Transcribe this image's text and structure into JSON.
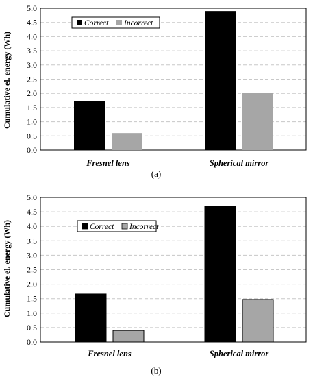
{
  "chart_data": [
    {
      "type": "bar",
      "panel_label": "(a)",
      "categories": [
        "Fresnel lens",
        "Spherical mirror"
      ],
      "series": [
        {
          "name": "Correct",
          "values": [
            1.72,
            4.9
          ],
          "color": "#000000"
        },
        {
          "name": "Incorrect",
          "values": [
            0.6,
            2.02
          ],
          "color": "#a6a6a6"
        }
      ],
      "ylabel": "Cumulative el. energy (Wh)",
      "ylim": [
        0,
        5
      ],
      "yticks": [
        "0.0",
        "0.5",
        "1.0",
        "1.5",
        "2.0",
        "2.5",
        "3.0",
        "3.5",
        "4.0",
        "4.5",
        "5.0"
      ],
      "grid": true,
      "legend": "top-left"
    },
    {
      "type": "bar",
      "panel_label": "(b)",
      "categories": [
        "Fresnel lens",
        "Spherical mirror"
      ],
      "series": [
        {
          "name": "Correct",
          "values": [
            1.66,
            4.7
          ],
          "color": "#000000"
        },
        {
          "name": "Incorrect",
          "values": [
            0.4,
            1.47
          ],
          "color": "#a6a6a6"
        }
      ],
      "ylabel": "Cumulative el. energy (Wh)",
      "ylim": [
        0,
        5
      ],
      "yticks": [
        "0.0",
        "0.5",
        "1.0",
        "1.5",
        "2.0",
        "2.5",
        "3.0",
        "3.5",
        "4.0",
        "4.5",
        "5.0"
      ],
      "grid": true,
      "legend": "top-left"
    }
  ]
}
